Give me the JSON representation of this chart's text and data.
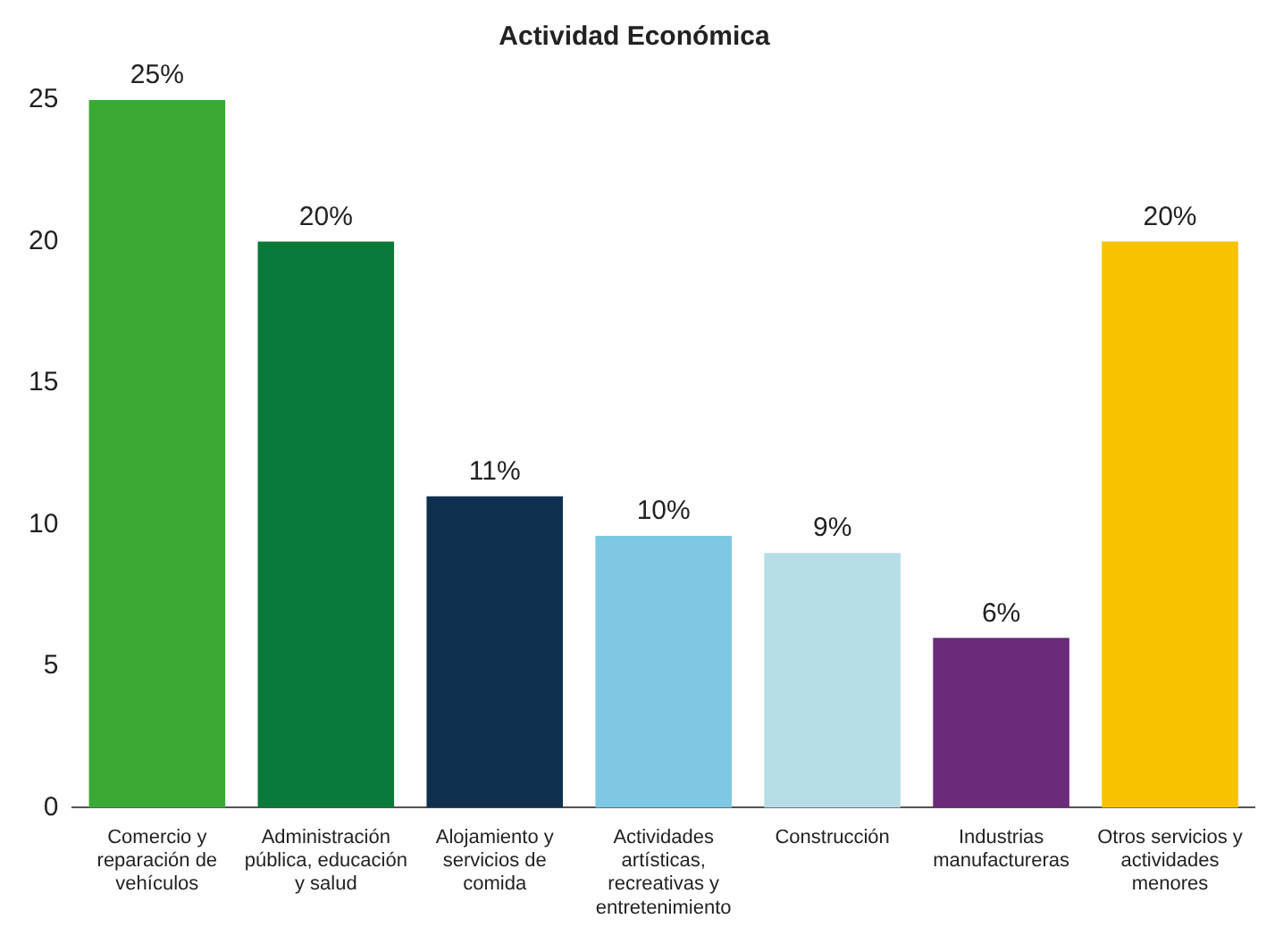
{
  "chart_data": {
    "type": "bar",
    "title": "Actividad Económica",
    "categories": [
      "Comercio y reparación de vehículos",
      "Administración pública, educación y salud",
      "Alojamiento y servicios de comida",
      "Actividades artísticas, recreativas y entretenimiento",
      "Construcción",
      "Industrias manufactureras",
      "Otros servicios y actividades menores"
    ],
    "values": [
      25,
      20,
      11,
      9.6,
      9,
      6,
      20
    ],
    "value_labels": [
      "25%",
      "20%",
      "11%",
      "10%",
      "9%",
      "6%",
      "20%"
    ],
    "colors": [
      "#3aaa35",
      "#0a7a3a",
      "#10304f",
      "#7ec8e3",
      "#b5dde6",
      "#6b2a7a",
      "#f7c200"
    ],
    "ylim": [
      0,
      25
    ],
    "yticks": [
      0,
      5,
      10,
      15,
      20,
      25
    ],
    "grid": false,
    "legend": false
  }
}
